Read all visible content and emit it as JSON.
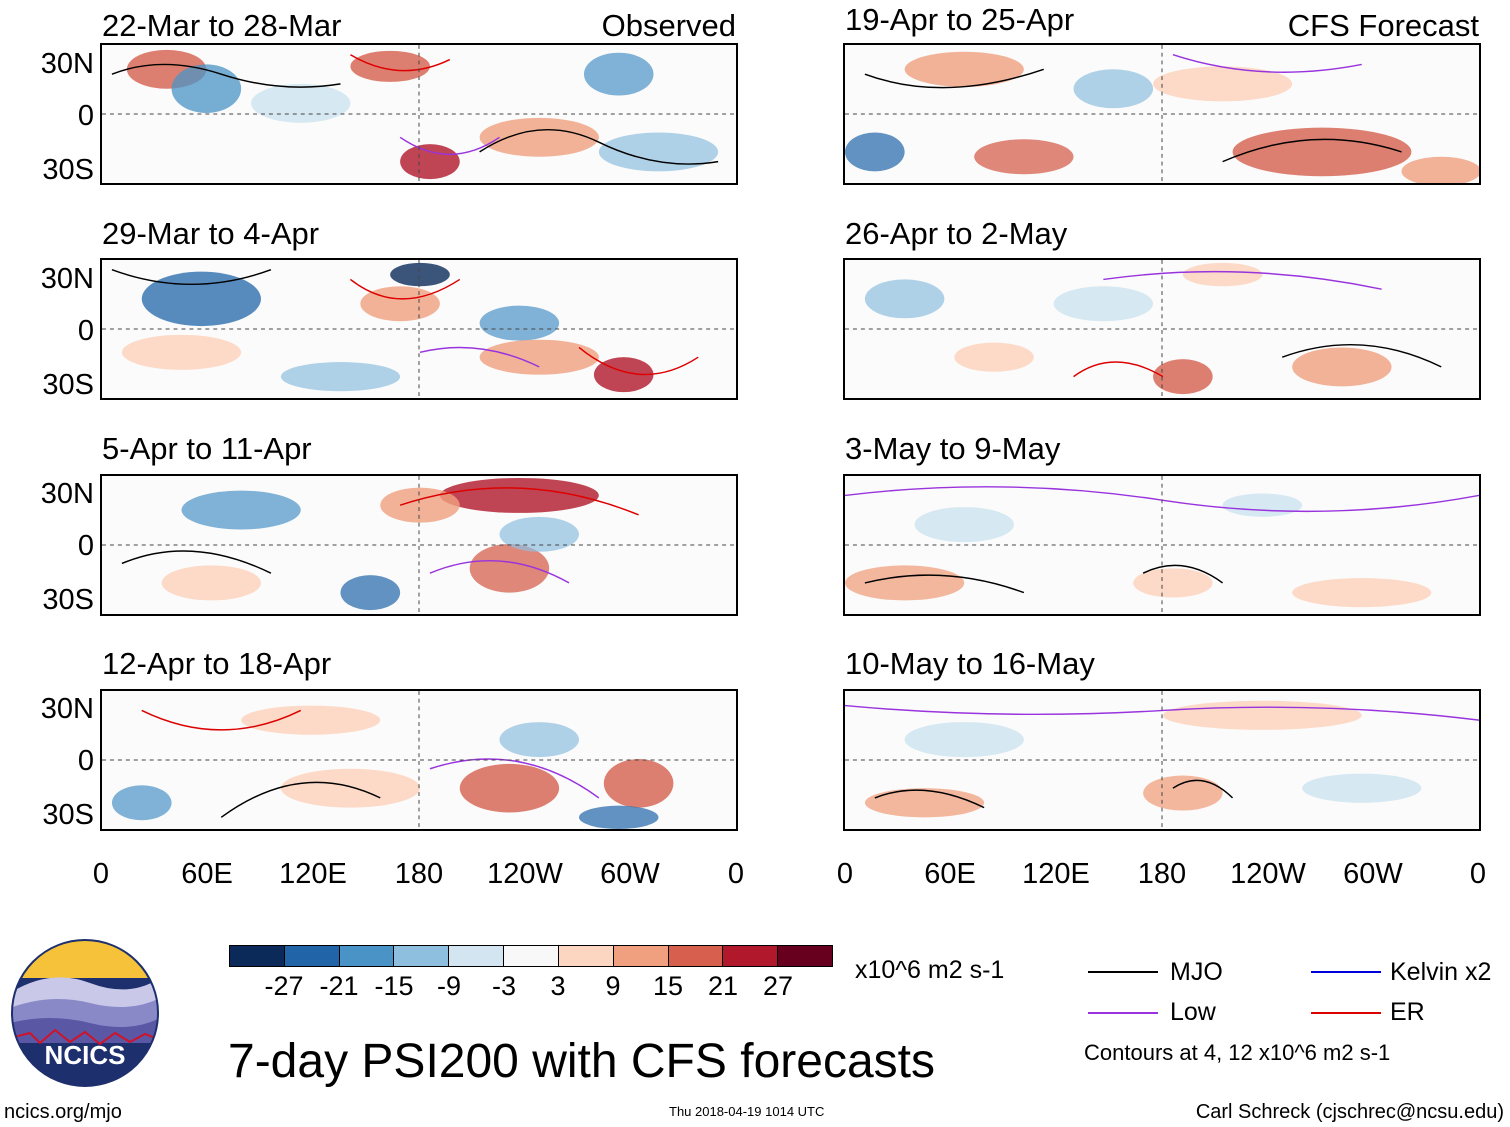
{
  "panels": {
    "observed_label": "Observed",
    "forecast_label": "CFS Forecast",
    "left": [
      {
        "title": "22-Mar to 28-Mar"
      },
      {
        "title": "29-Mar to 4-Apr"
      },
      {
        "title": "5-Apr to 11-Apr"
      },
      {
        "title": "12-Apr to 18-Apr"
      }
    ],
    "right": [
      {
        "title": "19-Apr to 25-Apr"
      },
      {
        "title": "26-Apr to 2-May"
      },
      {
        "title": "3-May to 9-May"
      },
      {
        "title": "10-May to 16-May"
      }
    ]
  },
  "axes": {
    "y_ticks": [
      "30N",
      "0",
      "30S"
    ],
    "x_ticks": [
      "0",
      "60E",
      "120E",
      "180",
      "120W",
      "60W",
      "0"
    ]
  },
  "colorbar": {
    "colors": [
      "#0b2a5a",
      "#2165a8",
      "#4a93c6",
      "#8fbfdf",
      "#d2e5f1",
      "#f8f8f8",
      "#fcd6c1",
      "#f0a07f",
      "#d6604d",
      "#b2182b",
      "#67001f"
    ],
    "labels": [
      "-27",
      "-21",
      "-15",
      "-9",
      "-3",
      "3",
      "9",
      "15",
      "21",
      "27"
    ],
    "units": "x10^6 m2 s-1"
  },
  "legend": {
    "items": [
      {
        "label": "MJO",
        "color": "#000000"
      },
      {
        "label": "Kelvin x2",
        "color": "#0000dd"
      },
      {
        "label": "Low",
        "color": "#9933dd"
      },
      {
        "label": "ER",
        "color": "#dd0000"
      }
    ],
    "contours_note": "Contours at 4, 12 x10^6 m2 s-1"
  },
  "logo": {
    "text": "NCICS"
  },
  "main_title": "7-day PSI200 with CFS forecasts",
  "footer": {
    "url": "ncics.org/mjo",
    "timestamp": "Thu 2018-04-19 1014 UTC",
    "credit": "Carl Schreck (cjschrec@ncsu.edu)"
  }
}
